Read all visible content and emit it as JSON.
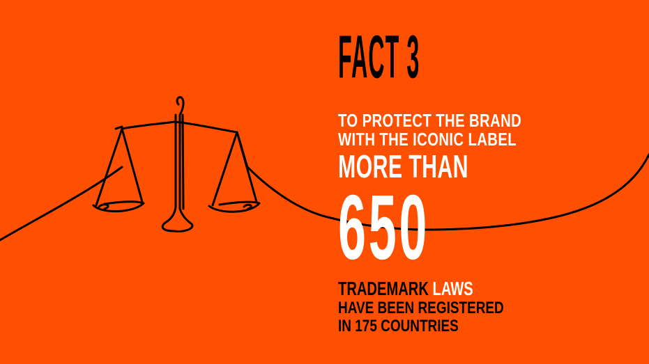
{
  "colors": {
    "background": "#ff4f00",
    "headline": "#000000",
    "highlight": "#ffffff",
    "line_art": "#000000"
  },
  "icons": {
    "illustration": "scales-of-justice-icon",
    "decoration": "continuous-line-stroke"
  },
  "fact": {
    "headline": "FACT 3",
    "intro_line_1": "TO PROTECT THE BRAND",
    "intro_line_2": "WITH THE ICONIC LABEL",
    "qualifier": "MORE THAN",
    "number": "650",
    "label_part_1": "TRADEMARK ",
    "label_part_2": "LAWS",
    "detail_line_1": "HAVE BEEN REGISTERED",
    "detail_line_2": "IN 175 COUNTRIES"
  }
}
